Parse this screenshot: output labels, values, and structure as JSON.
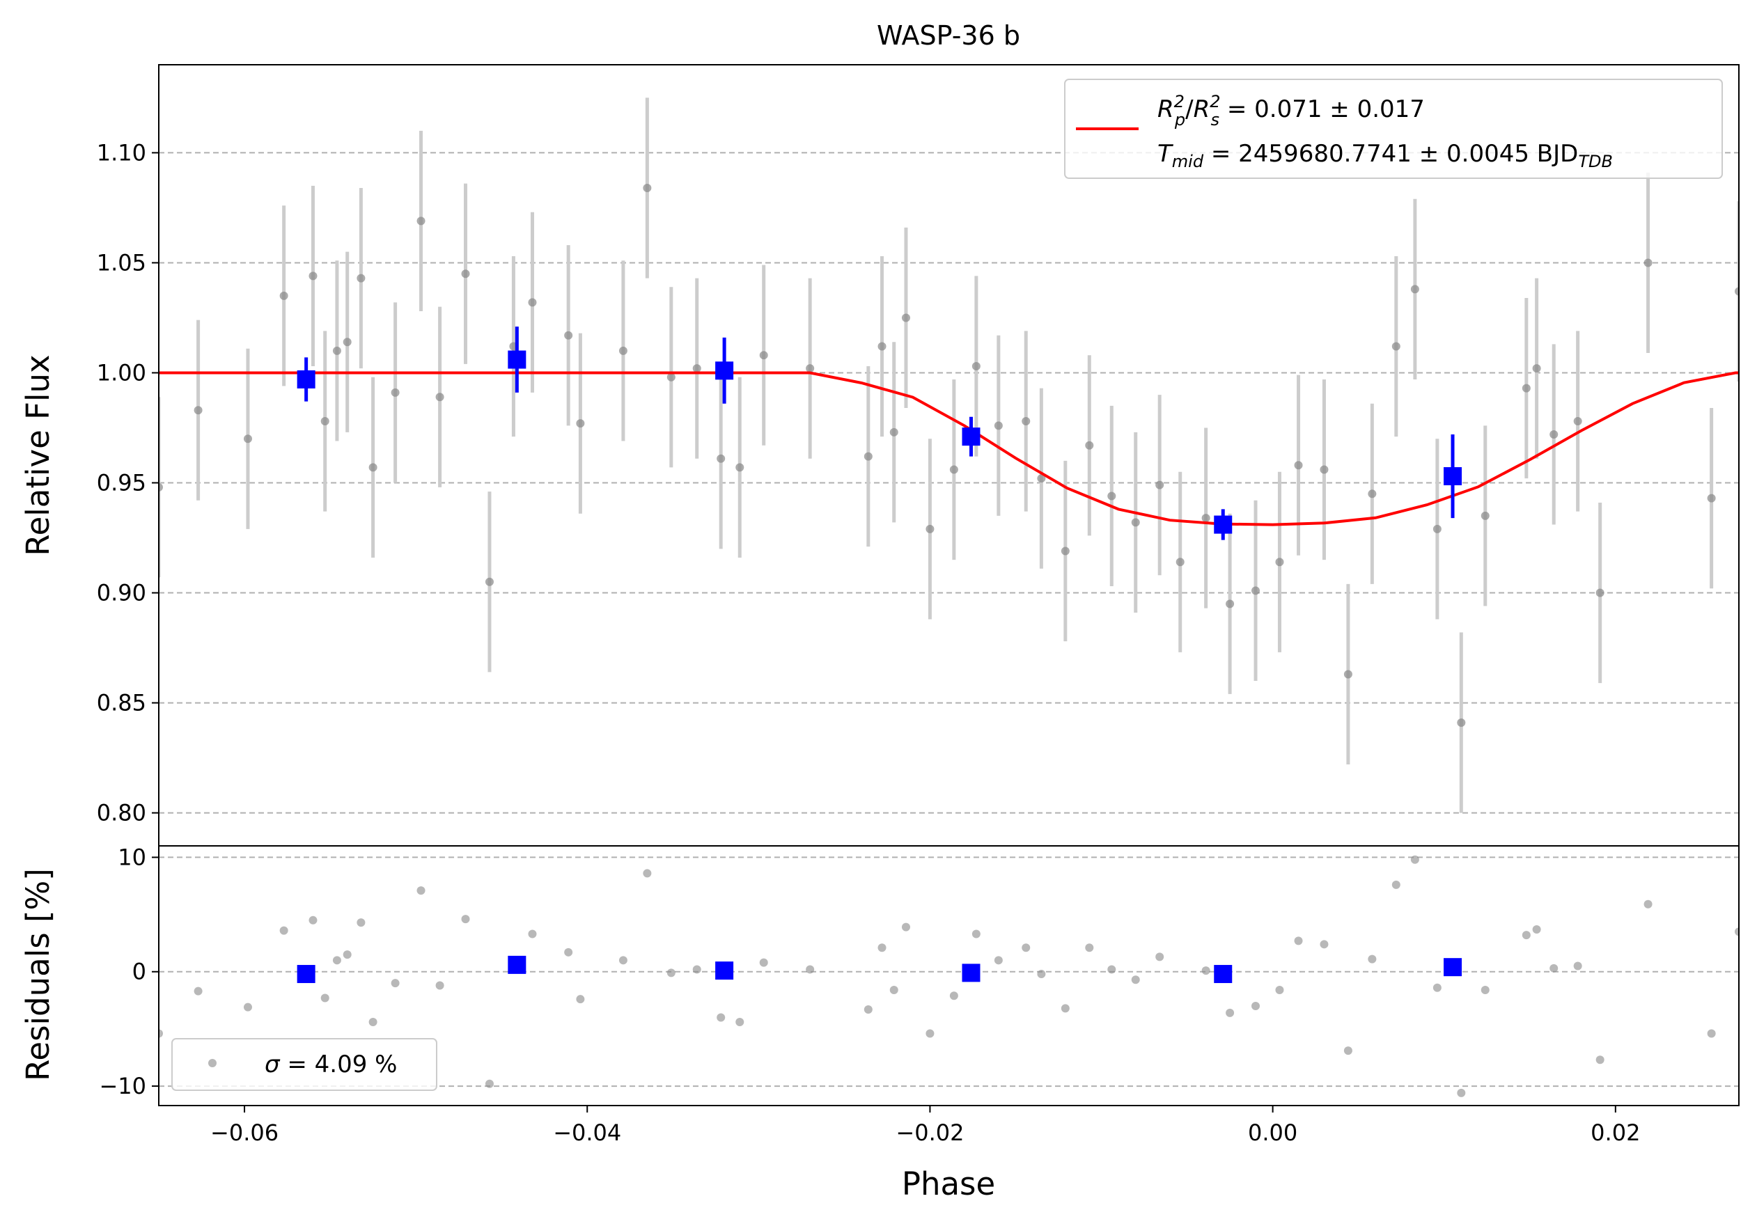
{
  "chart_data": {
    "title": "WASP-36 b",
    "xlabel": "Phase",
    "xlim": [
      -0.065,
      0.0272
    ],
    "x_ticks": [
      -0.06,
      -0.04,
      -0.02,
      0.0,
      0.02
    ],
    "x_tick_labels": [
      "−0.06",
      "−0.04",
      "−0.02",
      "0.00",
      "0.02"
    ],
    "grid": "horizontal dashed",
    "colors": {
      "raw": "#888888",
      "raw_err": "#cccccc",
      "binned": "#0000ff",
      "model": "#ff0000",
      "grid": "#b0b0b0"
    },
    "panels": [
      {
        "type": "scatter",
        "name": "flux",
        "ylabel": "Relative Flux",
        "ylim": [
          0.785,
          1.14
        ],
        "y_ticks": [
          0.8,
          0.85,
          0.9,
          0.95,
          1.0,
          1.05,
          1.1
        ],
        "y_tick_labels": [
          "0.80",
          "0.85",
          "0.90",
          "0.95",
          "1.00",
          "1.05",
          "1.10"
        ],
        "raw_error": 0.041,
        "raw_points": [
          [
            -0.065,
            0.948
          ],
          [
            -0.0627,
            0.983
          ],
          [
            -0.0598,
            0.97
          ],
          [
            -0.0577,
            1.035
          ],
          [
            -0.056,
            1.044
          ],
          [
            -0.0553,
            0.978
          ],
          [
            -0.0546,
            1.01
          ],
          [
            -0.054,
            1.014
          ],
          [
            -0.0532,
            1.043
          ],
          [
            -0.0525,
            0.957
          ],
          [
            -0.0512,
            0.991
          ],
          [
            -0.0497,
            1.069
          ],
          [
            -0.0486,
            0.989
          ],
          [
            -0.0471,
            1.045
          ],
          [
            -0.0457,
            0.905
          ],
          [
            -0.0443,
            1.012
          ],
          [
            -0.0432,
            1.032
          ],
          [
            -0.0411,
            1.017
          ],
          [
            -0.0404,
            0.977
          ],
          [
            -0.0379,
            1.01
          ],
          [
            -0.0365,
            1.084
          ],
          [
            -0.0351,
            0.998
          ],
          [
            -0.0336,
            1.002
          ],
          [
            -0.0322,
            0.961
          ],
          [
            -0.0311,
            0.957
          ],
          [
            -0.0297,
            1.008
          ],
          [
            -0.027,
            1.002
          ],
          [
            -0.0236,
            0.962
          ],
          [
            -0.0228,
            1.012
          ],
          [
            -0.0221,
            0.973
          ],
          [
            -0.0214,
            1.025
          ],
          [
            -0.02,
            0.929
          ],
          [
            -0.0186,
            0.956
          ],
          [
            -0.0173,
            1.003
          ],
          [
            -0.016,
            0.976
          ],
          [
            -0.0144,
            0.978
          ],
          [
            -0.0135,
            0.952
          ],
          [
            -0.0121,
            0.919
          ],
          [
            -0.0107,
            0.967
          ],
          [
            -0.0094,
            0.944
          ],
          [
            -0.008,
            0.932
          ],
          [
            -0.0066,
            0.949
          ],
          [
            -0.0054,
            0.914
          ],
          [
            -0.0039,
            0.934
          ],
          [
            -0.0025,
            0.895
          ],
          [
            -0.001,
            0.901
          ],
          [
            0.0004,
            0.914
          ],
          [
            0.0015,
            0.958
          ],
          [
            0.003,
            0.956
          ],
          [
            0.0044,
            0.863
          ],
          [
            0.0058,
            0.945
          ],
          [
            0.0072,
            1.012
          ],
          [
            0.0083,
            1.038
          ],
          [
            0.0096,
            0.929
          ],
          [
            0.011,
            0.841
          ],
          [
            0.0124,
            0.935
          ],
          [
            0.0148,
            0.993
          ],
          [
            0.0154,
            1.002
          ],
          [
            0.0164,
            0.972
          ],
          [
            0.0178,
            0.978
          ],
          [
            0.0191,
            0.9
          ],
          [
            0.0219,
            1.05
          ],
          [
            0.0256,
            0.943
          ],
          [
            0.0272,
            1.037
          ]
        ],
        "binned_points": [
          {
            "x": -0.0564,
            "y": 0.997,
            "err": 0.01
          },
          {
            "x": -0.0441,
            "y": 1.006,
            "err": 0.015
          },
          {
            "x": -0.032,
            "y": 1.001,
            "err": 0.015
          },
          {
            "x": -0.0176,
            "y": 0.971,
            "err": 0.009
          },
          {
            "x": -0.0029,
            "y": 0.931,
            "err": 0.007
          },
          {
            "x": 0.0105,
            "y": 0.953,
            "err": 0.019
          }
        ],
        "model": {
          "x": [
            -0.065,
            -0.027,
            -0.024,
            -0.021,
            -0.018,
            -0.015,
            -0.012,
            -0.009,
            -0.006,
            -0.003,
            0.0,
            0.003,
            0.006,
            0.009,
            0.012,
            0.015,
            0.018,
            0.021,
            0.024,
            0.027,
            0.0272
          ],
          "y": [
            1.0,
            1.0,
            0.9954,
            0.9889,
            0.976,
            0.9612,
            0.9476,
            0.938,
            0.933,
            0.9313,
            0.931,
            0.9317,
            0.9341,
            0.94,
            0.9482,
            0.9605,
            0.9737,
            0.986,
            0.9955,
            1.0,
            1.0
          ]
        },
        "legend": {
          "location": "upper right",
          "line1": {
            "lhs": "R",
            "sup1": "2",
            "sub1": "p",
            "mid": "/",
            "rhs": "R",
            "sup2": "2",
            "sub2": "s",
            "value": " = 0.071 ± 0.017"
          },
          "line2": {
            "lhs": "T",
            "sub": "mid",
            "value": " = 2459680.7741 ± 0.0045 BJD",
            "unit_sub": "TDB"
          }
        }
      },
      {
        "type": "scatter",
        "name": "residuals",
        "ylabel": "Residuals [%]",
        "ylim": [
          -11.7,
          11.0
        ],
        "y_ticks": [
          -10,
          0,
          10
        ],
        "y_tick_labels": [
          "−10",
          "0",
          "10"
        ],
        "raw_points": [
          [
            -0.065,
            -5.4
          ],
          [
            -0.0627,
            -1.7
          ],
          [
            -0.0598,
            -3.1
          ],
          [
            -0.0577,
            3.6
          ],
          [
            -0.056,
            4.5
          ],
          [
            -0.0553,
            -2.3
          ],
          [
            -0.0546,
            1.0
          ],
          [
            -0.054,
            1.5
          ],
          [
            -0.0532,
            4.3
          ],
          [
            -0.0525,
            -4.4
          ],
          [
            -0.0512,
            -1.0
          ],
          [
            -0.0497,
            7.1
          ],
          [
            -0.0486,
            -1.2
          ],
          [
            -0.0471,
            4.6
          ],
          [
            -0.0457,
            -9.8
          ],
          [
            -0.0432,
            3.3
          ],
          [
            -0.0411,
            1.7
          ],
          [
            -0.0404,
            -2.4
          ],
          [
            -0.0379,
            1.0
          ],
          [
            -0.0365,
            8.6
          ],
          [
            -0.0351,
            -0.1
          ],
          [
            -0.0336,
            0.2
          ],
          [
            -0.0322,
            -4.0
          ],
          [
            -0.0311,
            -4.4
          ],
          [
            -0.0297,
            0.8
          ],
          [
            -0.027,
            0.2
          ],
          [
            -0.0236,
            -3.3
          ],
          [
            -0.0228,
            2.1
          ],
          [
            -0.0221,
            -1.6
          ],
          [
            -0.0214,
            3.9
          ],
          [
            -0.02,
            -5.4
          ],
          [
            -0.0186,
            -2.1
          ],
          [
            -0.0173,
            3.3
          ],
          [
            -0.016,
            1.0
          ],
          [
            -0.0144,
            2.1
          ],
          [
            -0.0135,
            -0.2
          ],
          [
            -0.0121,
            -3.2
          ],
          [
            -0.0107,
            2.1
          ],
          [
            -0.0094,
            0.2
          ],
          [
            -0.008,
            -0.7
          ],
          [
            -0.0066,
            1.3
          ],
          [
            -0.0039,
            0.1
          ],
          [
            -0.0025,
            -3.6
          ],
          [
            -0.001,
            -3.0
          ],
          [
            0.0004,
            -1.6
          ],
          [
            0.0015,
            2.7
          ],
          [
            0.003,
            2.4
          ],
          [
            0.0044,
            -6.9
          ],
          [
            0.0058,
            1.1
          ],
          [
            0.0072,
            7.6
          ],
          [
            0.0083,
            9.8
          ],
          [
            0.0096,
            -1.4
          ],
          [
            0.011,
            -10.6
          ],
          [
            0.0124,
            -1.6
          ],
          [
            0.0148,
            3.2
          ],
          [
            0.0154,
            3.7
          ],
          [
            0.0164,
            0.3
          ],
          [
            0.0178,
            0.5
          ],
          [
            0.0191,
            -7.7
          ],
          [
            0.0219,
            5.9
          ],
          [
            0.0256,
            -5.4
          ],
          [
            0.0272,
            3.5
          ]
        ],
        "binned_points": [
          {
            "x": -0.0564,
            "y": -0.2
          },
          {
            "x": -0.0441,
            "y": 0.6
          },
          {
            "x": -0.032,
            "y": 0.1
          },
          {
            "x": -0.0176,
            "y": -0.1
          },
          {
            "x": -0.0029,
            "y": -0.2
          },
          {
            "x": 0.0105,
            "y": 0.4
          }
        ],
        "legend": {
          "location": "lower left",
          "sigma_symbol": "σ",
          "value": " = 4.09 %"
        }
      }
    ]
  }
}
